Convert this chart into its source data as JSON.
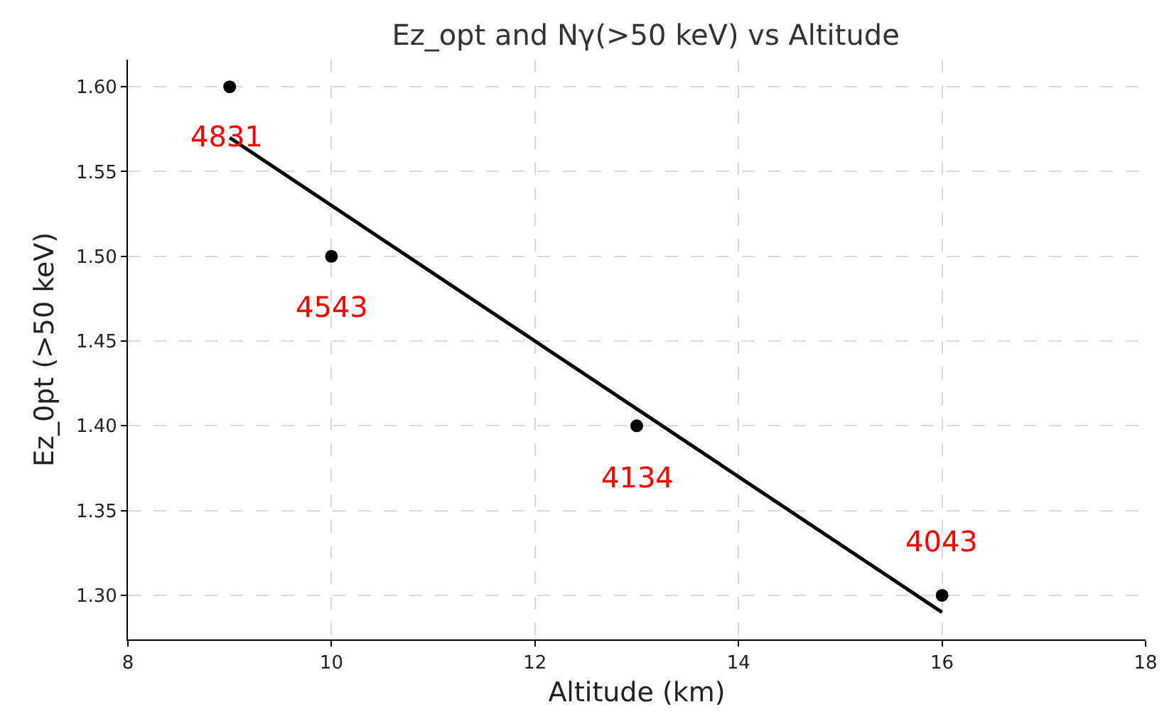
{
  "chart_data": {
    "type": "scatter",
    "title": "Ez_opt and Nγ(>50 keV) vs Altitude",
    "xlabel": "Altitude (km)",
    "ylabel": "Ez_0pt (>50 keV)",
    "series": [
      {
        "color": "#000000",
        "x": [
          9,
          10,
          13,
          16
        ],
        "values": [
          1.6,
          1.5,
          1.4,
          1.3
        ],
        "marker": "circle"
      },
      {
        "type": "line",
        "color": "#000000",
        "x": [
          9,
          16
        ],
        "values": [
          1.57,
          1.29
        ],
        "marker": "none",
        "line_style": "solid"
      }
    ],
    "xlim": [
      8,
      18
    ],
    "xticks": [
      8,
      10,
      12,
      14,
      16,
      18
    ],
    "ylim": [
      1.274,
      1.616
    ],
    "yticks": [
      {
        "value": 1.3,
        "label": "1.30"
      },
      1.35,
      {
        "value": 1.4,
        "label": "1.40"
      },
      1.45,
      {
        "value": 1.5,
        "label": "1.50"
      },
      1.55,
      {
        "value": 1.6,
        "label": "1.60"
      }
    ],
    "grid": true,
    "legend": false,
    "annotations": [
      {
        "text": "4831",
        "x": 9,
        "y": 1.6
      },
      {
        "text": "4543",
        "x": 10,
        "y": 1.5
      },
      {
        "text": "4134",
        "x": 13,
        "y": 1.4
      },
      {
        "text": "4043",
        "x": 16,
        "y": 1.3
      }
    ]
  }
}
